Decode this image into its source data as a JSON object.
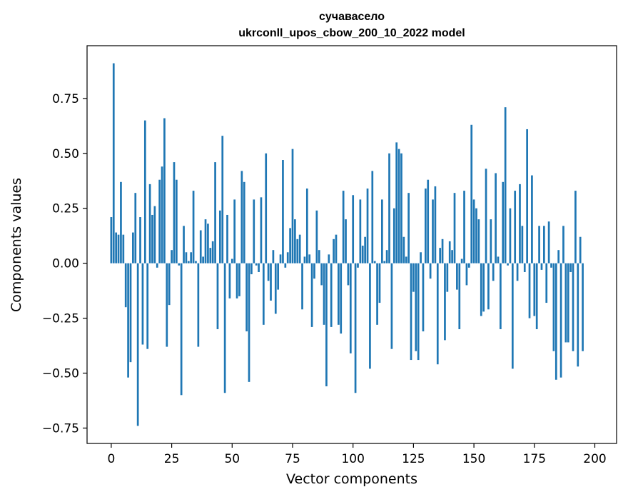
{
  "chart_data": {
    "type": "bar",
    "title": "сучавасело",
    "subtitle": "ukrconll_upos_cbow_200_10_2022 model",
    "xlabel": "Vector components",
    "ylabel": "Components values",
    "xlim": [
      -10,
      209
    ],
    "ylim": [
      -0.82,
      0.99
    ],
    "xticks": [
      0,
      25,
      50,
      75,
      100,
      125,
      150,
      175,
      200
    ],
    "yticks": [
      -0.75,
      -0.5,
      -0.25,
      0.0,
      0.25,
      0.5,
      0.75
    ],
    "xtick_labels": [
      "0",
      "25",
      "50",
      "75",
      "100",
      "125",
      "150",
      "175",
      "200"
    ],
    "ytick_labels": [
      "−0.75",
      "−0.50",
      "−0.25",
      "0.00",
      "0.25",
      "0.50",
      "0.75"
    ],
    "grid": false,
    "bar_color": "#1f77b4",
    "values": [
      0.21,
      0.91,
      0.14,
      0.13,
      0.37,
      0.13,
      -0.2,
      -0.52,
      -0.45,
      0.14,
      0.32,
      -0.74,
      0.21,
      -0.37,
      0.65,
      -0.39,
      0.36,
      0.22,
      0.26,
      -0.02,
      0.38,
      0.44,
      0.66,
      -0.38,
      -0.19,
      0.06,
      0.46,
      0.38,
      -0.01,
      -0.6,
      0.17,
      0.05,
      0.01,
      0.05,
      0.33,
      0.01,
      -0.38,
      0.15,
      0.03,
      0.2,
      0.18,
      0.07,
      0.1,
      0.46,
      -0.3,
      0.24,
      0.58,
      -0.59,
      0.22,
      -0.16,
      0.02,
      0.29,
      -0.16,
      -0.15,
      0.42,
      0.37,
      -0.31,
      -0.54,
      -0.05,
      0.29,
      -0.01,
      -0.04,
      0.3,
      -0.28,
      0.5,
      -0.08,
      -0.17,
      0.06,
      -0.23,
      -0.12,
      0.04,
      0.47,
      -0.02,
      0.05,
      0.16,
      0.52,
      0.2,
      0.11,
      0.13,
      -0.21,
      0.03,
      0.34,
      0.04,
      -0.29,
      -0.07,
      0.24,
      0.06,
      -0.1,
      -0.28,
      -0.56,
      0.04,
      -0.29,
      0.11,
      0.13,
      -0.28,
      -0.32,
      0.33,
      0.2,
      -0.1,
      -0.41,
      0.31,
      -0.59,
      -0.02,
      0.29,
      0.08,
      0.12,
      0.34,
      -0.48,
      0.42,
      0.01,
      -0.28,
      -0.18,
      0.29,
      0.01,
      0.06,
      0.5,
      -0.39,
      0.25,
      0.55,
      0.52,
      0.5,
      0.12,
      0.03,
      0.32,
      -0.44,
      -0.13,
      -0.4,
      -0.44,
      0.05,
      -0.31,
      0.34,
      0.38,
      -0.07,
      0.29,
      0.35,
      -0.46,
      0.07,
      0.11,
      -0.35,
      -0.13,
      0.1,
      0.06,
      0.32,
      -0.12,
      -0.3,
      0.02,
      0.33,
      -0.1,
      -0.02,
      0.63,
      0.29,
      0.25,
      0.2,
      -0.24,
      -0.22,
      0.43,
      -0.21,
      0.2,
      -0.08,
      0.41,
      0.03,
      -0.3,
      0.37,
      0.71,
      -0.01,
      0.25,
      -0.48,
      0.33,
      -0.08,
      0.36,
      0.17,
      -0.04,
      0.61,
      -0.25,
      0.4,
      -0.24,
      -0.3,
      0.17,
      -0.03,
      0.17,
      -0.18,
      0.19,
      -0.02,
      -0.4,
      -0.53,
      0.06,
      -0.52,
      0.17,
      -0.36,
      -0.36,
      -0.04,
      -0.4,
      0.33,
      -0.47,
      0.12,
      -0.4
    ]
  }
}
